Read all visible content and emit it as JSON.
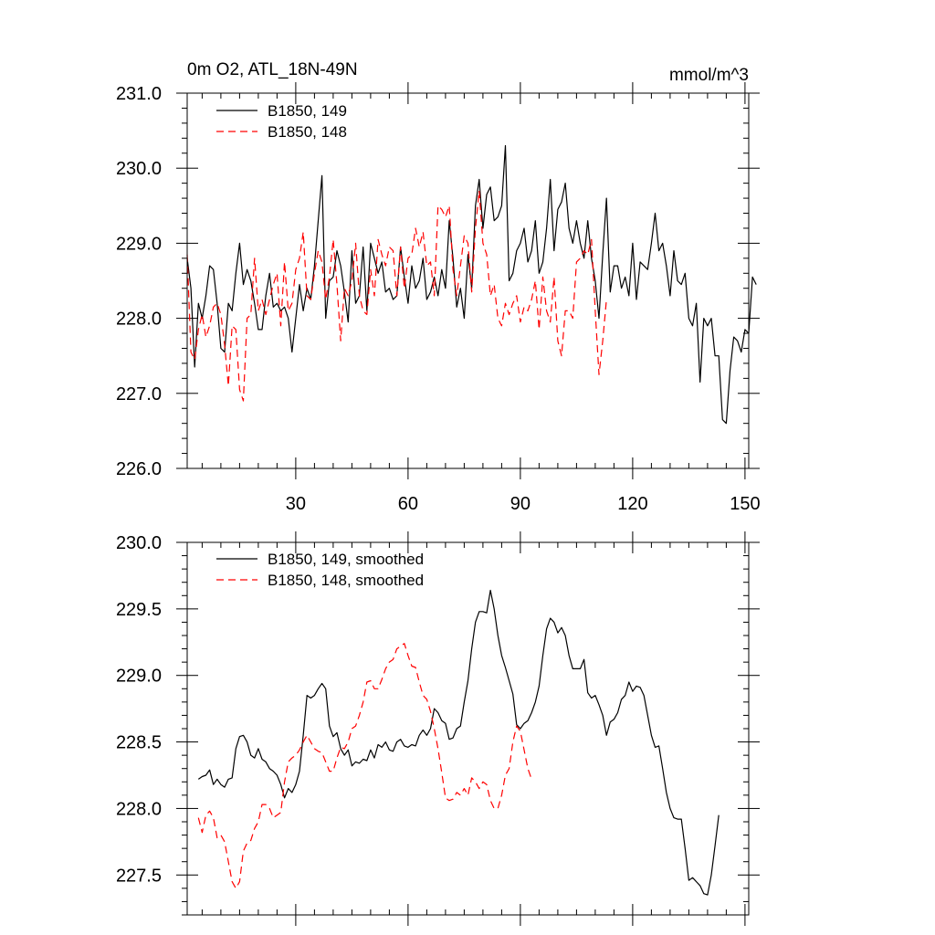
{
  "chart_data": [
    {
      "type": "line",
      "title": "0m O2, ATL_18N-49N",
      "units_label": "mmol/m^3",
      "xlim": [
        1,
        151
      ],
      "ylim": [
        226.0,
        231.0
      ],
      "x_ticks": [
        30,
        60,
        90,
        120,
        150
      ],
      "x_tick_labels": [
        "30",
        "60",
        "90",
        "120",
        "150"
      ],
      "y_ticks": [
        226.0,
        227.0,
        228.0,
        229.0,
        230.0,
        231.0
      ],
      "y_tick_labels": [
        "226.0",
        "227.0",
        "228.0",
        "229.0",
        "230.0",
        "231.0"
      ],
      "legend_position": "top-left",
      "grid": false,
      "series": [
        {
          "name": "B1850, 149",
          "color": "#000000",
          "style": "solid",
          "x_start": 1,
          "values": [
            228.8,
            228.4,
            227.35,
            228.2,
            228.0,
            228.3,
            228.7,
            228.65,
            228.2,
            227.6,
            227.55,
            228.2,
            228.1,
            228.6,
            229.0,
            228.45,
            228.65,
            228.5,
            228.2,
            227.85,
            227.85,
            228.3,
            228.6,
            228.15,
            228.2,
            228.1,
            228.15,
            228.0,
            227.55,
            228.0,
            228.45,
            228.1,
            228.4,
            228.25,
            228.7,
            229.3,
            229.9,
            228.0,
            228.5,
            228.55,
            228.9,
            228.7,
            228.35,
            227.95,
            228.9,
            228.2,
            228.3,
            228.95,
            228.1,
            229.0,
            228.8,
            228.6,
            228.75,
            228.35,
            228.4,
            228.25,
            228.3,
            228.95,
            228.55,
            228.2,
            228.7,
            228.4,
            228.5,
            228.8,
            228.25,
            228.35,
            228.55,
            228.3,
            228.65,
            228.4,
            229.3,
            228.8,
            228.15,
            228.4,
            228.0,
            228.85,
            228.4,
            229.5,
            229.85,
            229.2,
            229.65,
            229.75,
            229.3,
            229.35,
            229.5,
            230.3,
            228.5,
            228.6,
            228.9,
            229.0,
            229.2,
            228.75,
            228.9,
            229.3,
            228.6,
            228.75,
            229.2,
            229.85,
            228.9,
            229.45,
            229.55,
            229.8,
            229.2,
            229.0,
            229.3,
            229.0,
            228.8,
            229.3,
            228.8,
            228.5,
            228.0,
            228.85,
            229.6,
            228.35,
            228.7,
            228.7,
            228.4,
            228.55,
            228.3,
            229.0,
            228.25,
            228.75,
            228.7,
            228.65,
            229.0,
            229.4,
            228.9,
            229.0,
            228.7,
            228.3,
            228.9,
            228.5,
            228.45,
            228.6,
            228.0,
            227.9,
            228.2,
            227.15,
            228.0,
            227.9,
            228.0,
            227.5,
            227.5,
            226.65,
            226.6,
            227.3,
            227.75,
            227.7,
            227.55,
            227.85,
            227.8,
            228.55,
            228.45
          ]
        },
        {
          "name": "B1850, 148",
          "color": "#ff0000",
          "style": "dashed",
          "x_start": 1,
          "values": [
            228.85,
            227.55,
            227.45,
            227.85,
            228.05,
            227.75,
            227.9,
            228.15,
            228.2,
            228.05,
            227.65,
            227.1,
            227.9,
            227.85,
            227.05,
            226.9,
            228.0,
            228.05,
            228.8,
            228.1,
            228.25,
            228.05,
            228.25,
            228.45,
            228.6,
            227.9,
            228.75,
            228.1,
            228.2,
            228.65,
            228.8,
            229.15,
            228.3,
            228.25,
            228.6,
            228.9,
            228.75,
            228.25,
            228.55,
            229.05,
            228.45,
            227.7,
            228.4,
            228.3,
            228.5,
            229.0,
            228.3,
            228.1,
            228.05,
            228.65,
            228.3,
            229.05,
            228.85,
            228.7,
            228.95,
            228.9,
            228.3,
            228.95,
            228.4,
            228.8,
            228.85,
            229.2,
            228.95,
            229.15,
            228.7,
            228.75,
            228.3,
            229.5,
            229.45,
            229.35,
            229.5,
            228.65,
            228.3,
            228.7,
            229.1,
            229.0,
            228.35,
            229.2,
            229.7,
            229.0,
            228.85,
            228.3,
            228.45,
            228.0,
            227.9,
            228.2,
            228.05,
            228.2,
            228.3,
            227.95,
            228.15,
            228.1,
            228.25,
            228.5,
            227.85,
            228.55,
            228.1,
            227.95,
            228.55,
            227.7,
            227.5,
            228.1,
            228.1,
            228.0,
            228.75,
            228.8,
            228.9,
            228.85,
            229.05,
            228.1,
            227.25,
            227.7,
            228.25
          ]
        }
      ]
    },
    {
      "type": "line",
      "title": "",
      "xlim": [
        1,
        151
      ],
      "ylim": [
        227.2,
        230.0
      ],
      "x_ticks": [
        30,
        60,
        90,
        120,
        150
      ],
      "y_ticks": [
        227.5,
        228.0,
        228.5,
        229.0,
        229.5,
        230.0
      ],
      "y_tick_labels": [
        "227.5",
        "228.0",
        "228.5",
        "229.0",
        "229.5",
        "230.0"
      ],
      "legend_position": "top-left",
      "grid": false,
      "series": [
        {
          "name": "B1850, 149, smoothed",
          "color": "#000000",
          "style": "solid",
          "x_start": 4,
          "values": [
            228.22,
            228.24,
            228.25,
            228.29,
            228.18,
            228.22,
            228.18,
            228.16,
            228.22,
            228.23,
            228.45,
            228.54,
            228.55,
            228.5,
            228.4,
            228.38,
            228.45,
            228.37,
            228.35,
            228.3,
            228.28,
            228.25,
            228.18,
            228.08,
            228.15,
            228.12,
            228.18,
            228.28,
            228.55,
            228.85,
            228.83,
            228.85,
            228.9,
            228.94,
            228.9,
            228.62,
            228.54,
            228.57,
            228.45,
            228.4,
            228.44,
            228.32,
            228.35,
            228.34,
            228.37,
            228.36,
            228.44,
            228.38,
            228.48,
            228.46,
            228.5,
            228.44,
            228.43,
            228.5,
            228.52,
            228.47,
            228.46,
            228.48,
            228.47,
            228.55,
            228.59,
            228.55,
            228.6,
            228.75,
            228.72,
            228.66,
            228.64,
            228.52,
            228.53,
            228.6,
            228.62,
            228.8,
            228.96,
            229.2,
            229.4,
            229.48,
            229.48,
            229.47,
            229.64,
            229.5,
            229.3,
            229.15,
            229.06,
            228.96,
            228.86,
            228.63,
            228.6,
            228.64,
            228.66,
            228.72,
            228.8,
            228.92,
            229.15,
            229.35,
            229.43,
            229.4,
            229.32,
            229.36,
            229.3,
            229.15,
            229.05,
            229.05,
            229.05,
            229.12,
            228.87,
            228.83,
            228.85,
            228.78,
            228.7,
            228.55,
            228.65,
            228.67,
            228.72,
            228.82,
            228.85,
            228.95,
            228.88,
            228.92,
            228.91,
            228.85,
            228.7,
            228.55,
            228.46,
            228.47,
            228.3,
            228.12,
            228.0,
            227.93,
            227.92,
            227.92,
            227.7,
            227.46,
            227.48,
            227.45,
            227.42,
            227.36,
            227.35,
            227.5,
            227.72,
            227.95
          ]
        },
        {
          "name": "B1850, 148, smoothed",
          "color": "#ff0000",
          "style": "dashed",
          "x_start": 4,
          "values": [
            227.93,
            227.82,
            227.95,
            227.98,
            227.93,
            227.78,
            227.8,
            227.75,
            227.6,
            227.45,
            227.4,
            227.45,
            227.68,
            227.74,
            227.76,
            227.85,
            227.9,
            228.03,
            228.03,
            228.0,
            227.93,
            227.95,
            227.97,
            228.2,
            228.35,
            228.38,
            228.4,
            228.44,
            228.5,
            228.55,
            228.5,
            228.45,
            228.43,
            228.42,
            228.35,
            228.28,
            228.28,
            228.38,
            228.46,
            228.45,
            228.5,
            228.6,
            228.62,
            228.7,
            228.8,
            228.95,
            228.96,
            228.9,
            228.9,
            228.97,
            229.05,
            229.1,
            229.12,
            229.2,
            229.22,
            229.24,
            229.15,
            229.07,
            229.06,
            228.95,
            228.85,
            228.82,
            228.73,
            228.6,
            228.45,
            228.27,
            228.08,
            228.06,
            228.07,
            228.12,
            228.1,
            228.15,
            228.1,
            228.23,
            228.2,
            228.15,
            228.2,
            228.18,
            228.06,
            228.0,
            228.0,
            228.1,
            228.25,
            228.3,
            228.5,
            228.62,
            228.58,
            228.44,
            228.3,
            228.22
          ]
        }
      ]
    }
  ]
}
